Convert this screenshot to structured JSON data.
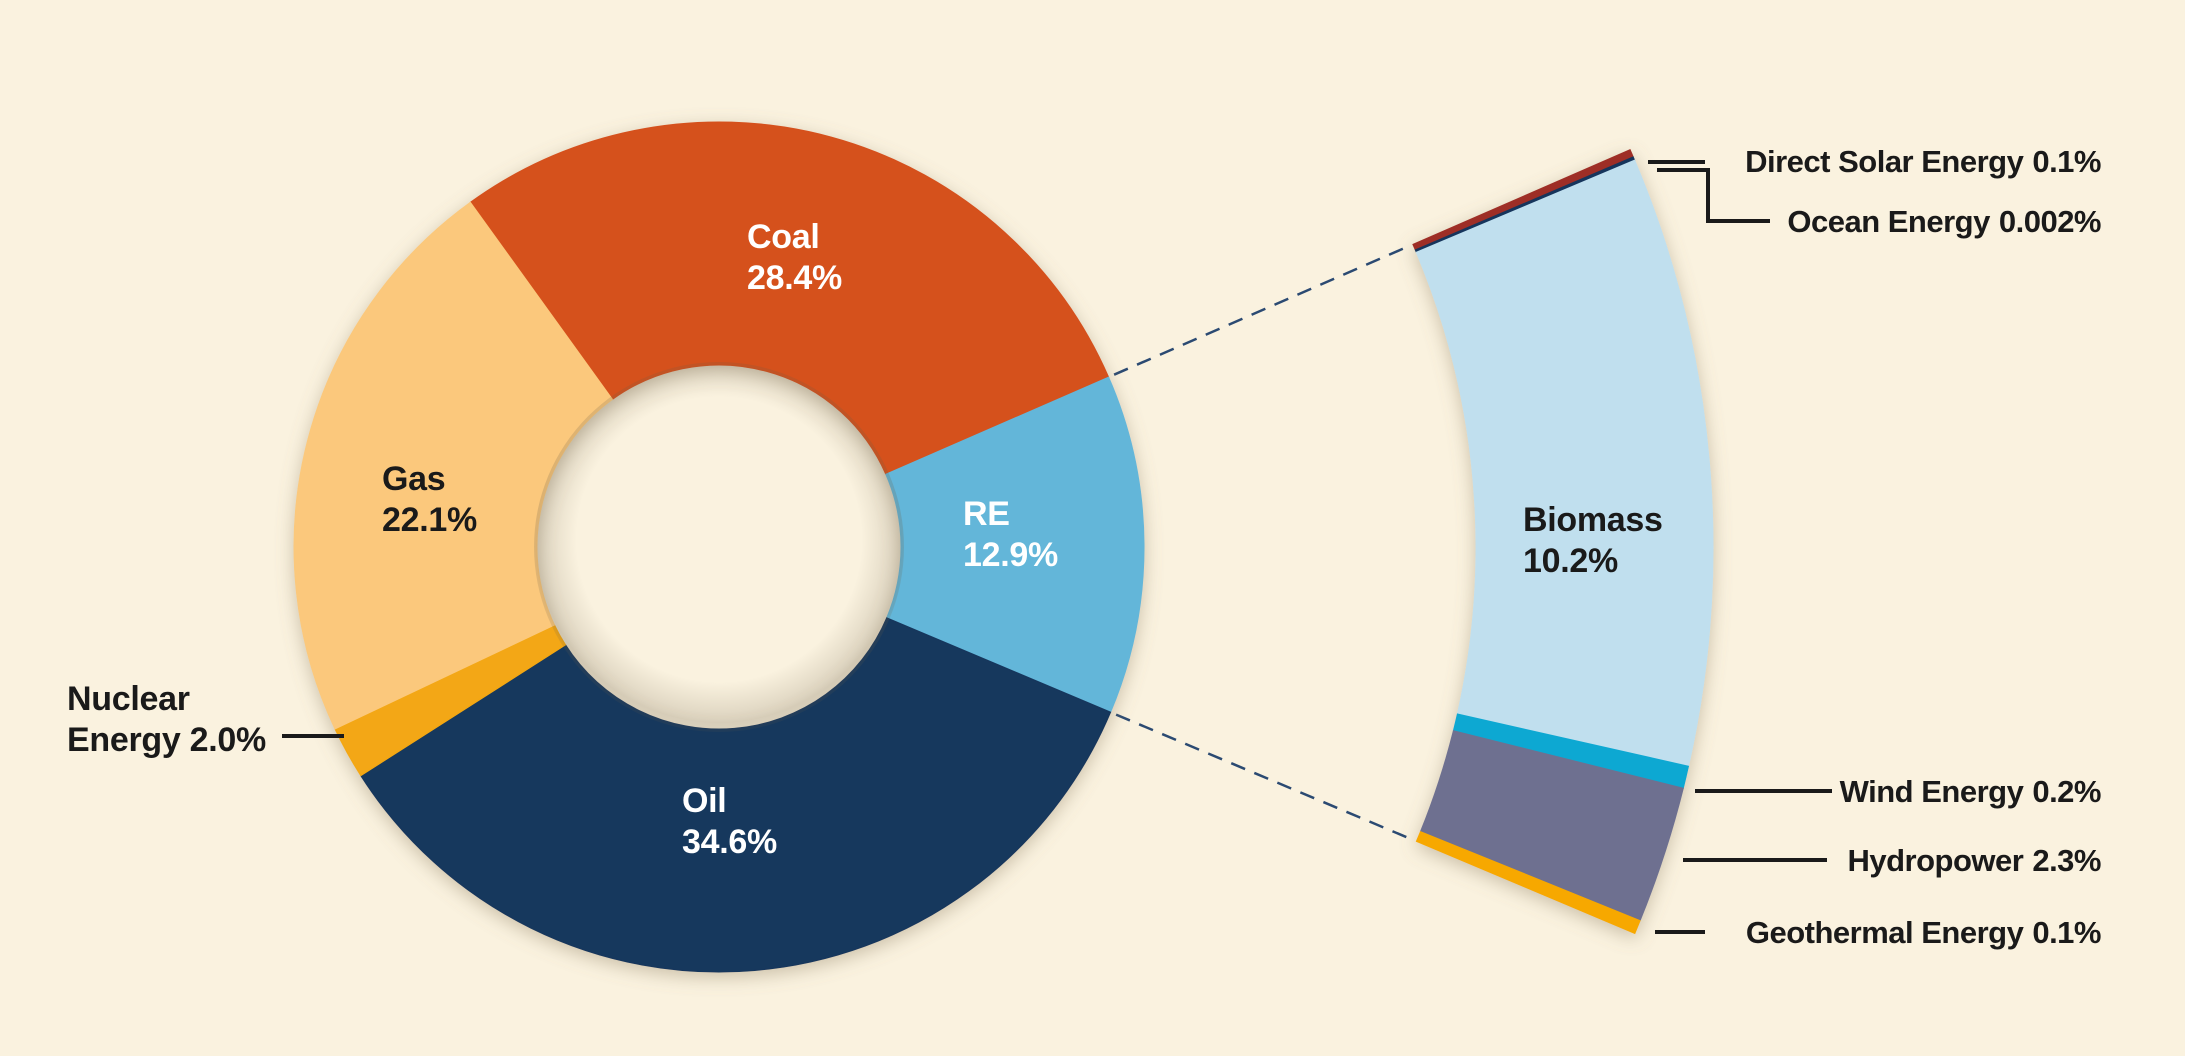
{
  "theme": {
    "background": "#FAF2DF",
    "text_color": "#1A1A1A",
    "leader_color": "#1A1A1A",
    "connector_color": "#2B4A72",
    "shadow_color": "#8A7A5F"
  },
  "chart_data": {
    "type": "pie",
    "style": "donut-with-magnified-breakout",
    "units": "percent",
    "title": "",
    "donut": {
      "start_angle_deg": -35.8,
      "segments": [
        {
          "id": "coal",
          "label": "Coal",
          "value": 28.4,
          "display": "28.4%",
          "color": "#D5511D",
          "label_color": "#FFFFFF"
        },
        {
          "id": "re",
          "label": "RE",
          "value": 12.9,
          "display": "12.9%",
          "color": "#64B6D9",
          "label_color": "#FFFFFF"
        },
        {
          "id": "oil",
          "label": "Oil",
          "value": 34.6,
          "display": "34.6%",
          "color": "#15375D",
          "label_color": "#FFFFFF"
        },
        {
          "id": "nuclear",
          "label": "Nuclear Energy",
          "value": 2.0,
          "display": "2.0%",
          "color": "#F3A712",
          "label_color": "#1A1A1A",
          "label_lines": [
            "Nuclear",
            "Energy 2.0%"
          ]
        },
        {
          "id": "gas",
          "label": "Gas",
          "value": 22.1,
          "display": "22.1%",
          "color": "#FBC87B",
          "label_color": "#1A1A1A"
        }
      ]
    },
    "breakout": {
      "parent_id": "re",
      "segments": [
        {
          "id": "direct-solar",
          "label": "Direct Solar Energy",
          "value": 0.1,
          "display": "0.1%",
          "color": "#9E2F26"
        },
        {
          "id": "ocean",
          "label": "Ocean Energy",
          "value": 0.002,
          "display": "0.002%",
          "color": "#16365C"
        },
        {
          "id": "biomass",
          "label": "Biomass",
          "value": 10.2,
          "display": "10.2%",
          "color": "#C0DFEE",
          "label_color": "#1A1A1A"
        },
        {
          "id": "wind",
          "label": "Wind Energy",
          "value": 0.2,
          "display": "0.2%",
          "color": "#0FA8D2"
        },
        {
          "id": "hydro",
          "label": "Hydropower",
          "value": 2.3,
          "display": "2.3%",
          "color": "#6E7090"
        },
        {
          "id": "geothermal",
          "label": "Geothermal Energy",
          "value": 0.1,
          "display": "0.1%",
          "color": "#F7A800"
        }
      ]
    }
  }
}
